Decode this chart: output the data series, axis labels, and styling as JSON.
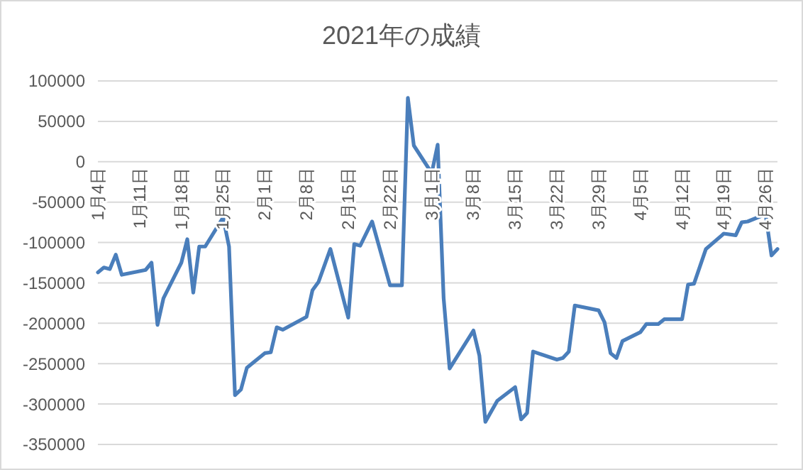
{
  "chart_data": {
    "type": "line",
    "title": "2021年の成績",
    "x": [
      "2021-01-04",
      "2021-01-05",
      "2021-01-06",
      "2021-01-07",
      "2021-01-08",
      "2021-01-12",
      "2021-01-13",
      "2021-01-14",
      "2021-01-15",
      "2021-01-18",
      "2021-01-19",
      "2021-01-20",
      "2021-01-21",
      "2021-01-22",
      "2021-01-25",
      "2021-01-26",
      "2021-01-27",
      "2021-01-28",
      "2021-01-29",
      "2021-02-01",
      "2021-02-02",
      "2021-02-03",
      "2021-02-04",
      "2021-02-08",
      "2021-02-09",
      "2021-02-10",
      "2021-02-12",
      "2021-02-15",
      "2021-02-16",
      "2021-02-17",
      "2021-02-19",
      "2021-02-22",
      "2021-02-24",
      "2021-02-25",
      "2021-02-26",
      "2021-03-01",
      "2021-03-02",
      "2021-03-03",
      "2021-03-04",
      "2021-03-08",
      "2021-03-09",
      "2021-03-10",
      "2021-03-12",
      "2021-03-15",
      "2021-03-16",
      "2021-03-17",
      "2021-03-18",
      "2021-03-22",
      "2021-03-23",
      "2021-03-24",
      "2021-03-25",
      "2021-03-29",
      "2021-03-30",
      "2021-03-31",
      "2021-04-01",
      "2021-04-02",
      "2021-04-05",
      "2021-04-06",
      "2021-04-08",
      "2021-04-09",
      "2021-04-12",
      "2021-04-13",
      "2021-04-14",
      "2021-04-16",
      "2021-04-19",
      "2021-04-21",
      "2021-04-22",
      "2021-04-23",
      "2021-04-26",
      "2021-04-27",
      "2021-04-28"
    ],
    "series": [
      {
        "color": "#4a7ebb",
        "values": [
          -137000,
          -131000,
          -133000,
          -115000,
          -140000,
          -134000,
          -125000,
          -202000,
          -169000,
          -125000,
          -96000,
          -162000,
          -105000,
          -105000,
          -69000,
          -105000,
          -289000,
          -282000,
          -255000,
          -237000,
          -236000,
          -205000,
          -208000,
          -192000,
          -159000,
          -149000,
          -108000,
          -193000,
          -102000,
          -104000,
          -74000,
          -153000,
          -153000,
          79000,
          20000,
          -14000,
          21000,
          -169000,
          -256000,
          -209000,
          -240000,
          -322000,
          -296000,
          -279000,
          -319000,
          -311000,
          -235000,
          -245000,
          -243000,
          -235000,
          -178000,
          -184000,
          -199000,
          -237000,
          -243000,
          -222000,
          -211000,
          -201000,
          -201000,
          -195000,
          -195000,
          -152000,
          -151000,
          -108000,
          -89000,
          -91000,
          -75000,
          -74000,
          -65000,
          -116000,
          -108000
        ]
      }
    ],
    "xlim": [
      "2021-01-04",
      "2021-04-28"
    ],
    "xticks": [
      {
        "value": "2021-01-04",
        "label": "1月4日"
      },
      {
        "value": "2021-01-11",
        "label": "1月11日"
      },
      {
        "value": "2021-01-18",
        "label": "1月18日"
      },
      {
        "value": "2021-01-25",
        "label": "1月25日"
      },
      {
        "value": "2021-02-01",
        "label": "2月1日"
      },
      {
        "value": "2021-02-08",
        "label": "2月8日"
      },
      {
        "value": "2021-02-15",
        "label": "2月15日"
      },
      {
        "value": "2021-02-22",
        "label": "2月22日"
      },
      {
        "value": "2021-03-01",
        "label": "3月1日"
      },
      {
        "value": "2021-03-08",
        "label": "3月8日"
      },
      {
        "value": "2021-03-15",
        "label": "3月15日"
      },
      {
        "value": "2021-03-22",
        "label": "3月22日"
      },
      {
        "value": "2021-03-29",
        "label": "3月29日"
      },
      {
        "value": "2021-04-05",
        "label": "4月5日"
      },
      {
        "value": "2021-04-12",
        "label": "4月12日"
      },
      {
        "value": "2021-04-19",
        "label": "4月19日"
      },
      {
        "value": "2021-04-26",
        "label": "4月26日"
      }
    ],
    "ylim": [
      -350000,
      100000
    ],
    "yticks": [
      -350000,
      -300000,
      -250000,
      -200000,
      -150000,
      -100000,
      -50000,
      0,
      50000,
      100000
    ],
    "grid": "y",
    "marker": "none",
    "line_style": "solid"
  }
}
